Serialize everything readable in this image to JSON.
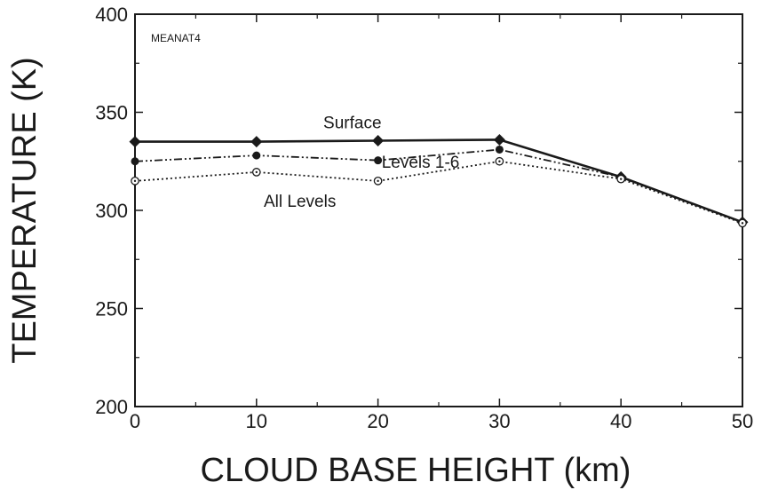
{
  "chart_data": {
    "type": "line",
    "tag": "MEANAT4",
    "xlabel": "CLOUD BASE HEIGHT  (km)",
    "ylabel": "TEMPERATURE  (K)",
    "xlim": [
      0,
      50
    ],
    "ylim": [
      200,
      400
    ],
    "xticks": [
      0,
      10,
      20,
      30,
      40,
      50
    ],
    "yticks": [
      200,
      250,
      300,
      350,
      400
    ],
    "grid": false,
    "x": [
      0,
      10,
      20,
      30,
      40,
      50
    ],
    "series": [
      {
        "name": "Surface",
        "values": [
          335,
          335,
          335.5,
          336,
          317,
          294
        ],
        "line": "solid",
        "marker": "diamond",
        "color": "#1a1a1a"
      },
      {
        "name": "Levels 1-6",
        "values": [
          325,
          328,
          325.5,
          331,
          317,
          294
        ],
        "line": "dashdot",
        "marker": "filled-circle",
        "color": "#1a1a1a"
      },
      {
        "name": "All Levels",
        "values": [
          315,
          319.5,
          315,
          325,
          316,
          293.5
        ],
        "line": "dotted",
        "marker": "open-circle",
        "color": "#1a1a1a"
      }
    ]
  }
}
